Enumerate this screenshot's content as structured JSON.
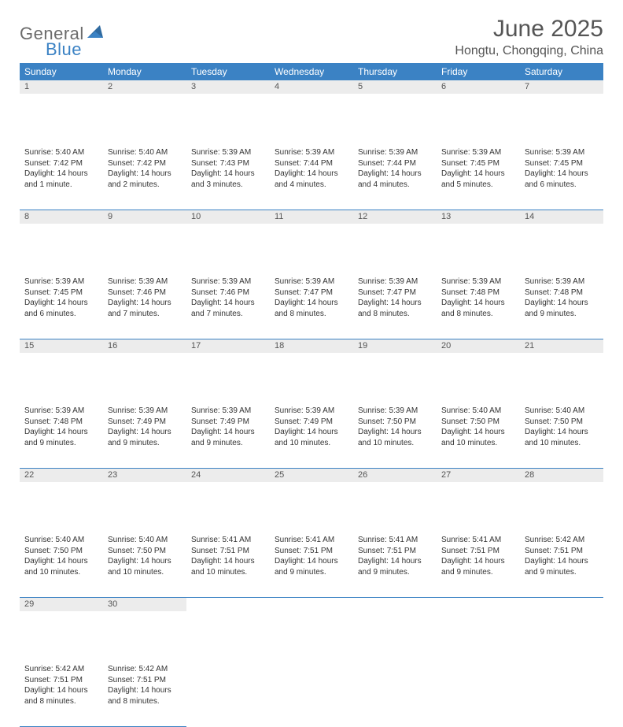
{
  "logo": {
    "word1": "General",
    "word2": "Blue"
  },
  "header": {
    "title": "June 2025",
    "location": "Hongtu, Chongqing, China"
  },
  "colors": {
    "header_bg": "#3b82c4",
    "header_text": "#ffffff",
    "daynum_bg": "#ececec",
    "text": "#333333",
    "rule": "#3b82c4",
    "logo_gray": "#6b6b6b",
    "logo_blue": "#3b82c4"
  },
  "weekdays": [
    "Sunday",
    "Monday",
    "Tuesday",
    "Wednesday",
    "Thursday",
    "Friday",
    "Saturday"
  ],
  "weeks": [
    [
      {
        "n": "1",
        "sr": "5:40 AM",
        "ss": "7:42 PM",
        "dl": "14 hours and 1 minute."
      },
      {
        "n": "2",
        "sr": "5:40 AM",
        "ss": "7:42 PM",
        "dl": "14 hours and 2 minutes."
      },
      {
        "n": "3",
        "sr": "5:39 AM",
        "ss": "7:43 PM",
        "dl": "14 hours and 3 minutes."
      },
      {
        "n": "4",
        "sr": "5:39 AM",
        "ss": "7:44 PM",
        "dl": "14 hours and 4 minutes."
      },
      {
        "n": "5",
        "sr": "5:39 AM",
        "ss": "7:44 PM",
        "dl": "14 hours and 4 minutes."
      },
      {
        "n": "6",
        "sr": "5:39 AM",
        "ss": "7:45 PM",
        "dl": "14 hours and 5 minutes."
      },
      {
        "n": "7",
        "sr": "5:39 AM",
        "ss": "7:45 PM",
        "dl": "14 hours and 6 minutes."
      }
    ],
    [
      {
        "n": "8",
        "sr": "5:39 AM",
        "ss": "7:45 PM",
        "dl": "14 hours and 6 minutes."
      },
      {
        "n": "9",
        "sr": "5:39 AM",
        "ss": "7:46 PM",
        "dl": "14 hours and 7 minutes."
      },
      {
        "n": "10",
        "sr": "5:39 AM",
        "ss": "7:46 PM",
        "dl": "14 hours and 7 minutes."
      },
      {
        "n": "11",
        "sr": "5:39 AM",
        "ss": "7:47 PM",
        "dl": "14 hours and 8 minutes."
      },
      {
        "n": "12",
        "sr": "5:39 AM",
        "ss": "7:47 PM",
        "dl": "14 hours and 8 minutes."
      },
      {
        "n": "13",
        "sr": "5:39 AM",
        "ss": "7:48 PM",
        "dl": "14 hours and 8 minutes."
      },
      {
        "n": "14",
        "sr": "5:39 AM",
        "ss": "7:48 PM",
        "dl": "14 hours and 9 minutes."
      }
    ],
    [
      {
        "n": "15",
        "sr": "5:39 AM",
        "ss": "7:48 PM",
        "dl": "14 hours and 9 minutes."
      },
      {
        "n": "16",
        "sr": "5:39 AM",
        "ss": "7:49 PM",
        "dl": "14 hours and 9 minutes."
      },
      {
        "n": "17",
        "sr": "5:39 AM",
        "ss": "7:49 PM",
        "dl": "14 hours and 9 minutes."
      },
      {
        "n": "18",
        "sr": "5:39 AM",
        "ss": "7:49 PM",
        "dl": "14 hours and 10 minutes."
      },
      {
        "n": "19",
        "sr": "5:39 AM",
        "ss": "7:50 PM",
        "dl": "14 hours and 10 minutes."
      },
      {
        "n": "20",
        "sr": "5:40 AM",
        "ss": "7:50 PM",
        "dl": "14 hours and 10 minutes."
      },
      {
        "n": "21",
        "sr": "5:40 AM",
        "ss": "7:50 PM",
        "dl": "14 hours and 10 minutes."
      }
    ],
    [
      {
        "n": "22",
        "sr": "5:40 AM",
        "ss": "7:50 PM",
        "dl": "14 hours and 10 minutes."
      },
      {
        "n": "23",
        "sr": "5:40 AM",
        "ss": "7:50 PM",
        "dl": "14 hours and 10 minutes."
      },
      {
        "n": "24",
        "sr": "5:41 AM",
        "ss": "7:51 PM",
        "dl": "14 hours and 10 minutes."
      },
      {
        "n": "25",
        "sr": "5:41 AM",
        "ss": "7:51 PM",
        "dl": "14 hours and 9 minutes."
      },
      {
        "n": "26",
        "sr": "5:41 AM",
        "ss": "7:51 PM",
        "dl": "14 hours and 9 minutes."
      },
      {
        "n": "27",
        "sr": "5:41 AM",
        "ss": "7:51 PM",
        "dl": "14 hours and 9 minutes."
      },
      {
        "n": "28",
        "sr": "5:42 AM",
        "ss": "7:51 PM",
        "dl": "14 hours and 9 minutes."
      }
    ],
    [
      {
        "n": "29",
        "sr": "5:42 AM",
        "ss": "7:51 PM",
        "dl": "14 hours and 8 minutes."
      },
      {
        "n": "30",
        "sr": "5:42 AM",
        "ss": "7:51 PM",
        "dl": "14 hours and 8 minutes."
      },
      null,
      null,
      null,
      null,
      null
    ]
  ],
  "labels": {
    "sunrise": "Sunrise: ",
    "sunset": "Sunset: ",
    "daylight": "Daylight: "
  }
}
